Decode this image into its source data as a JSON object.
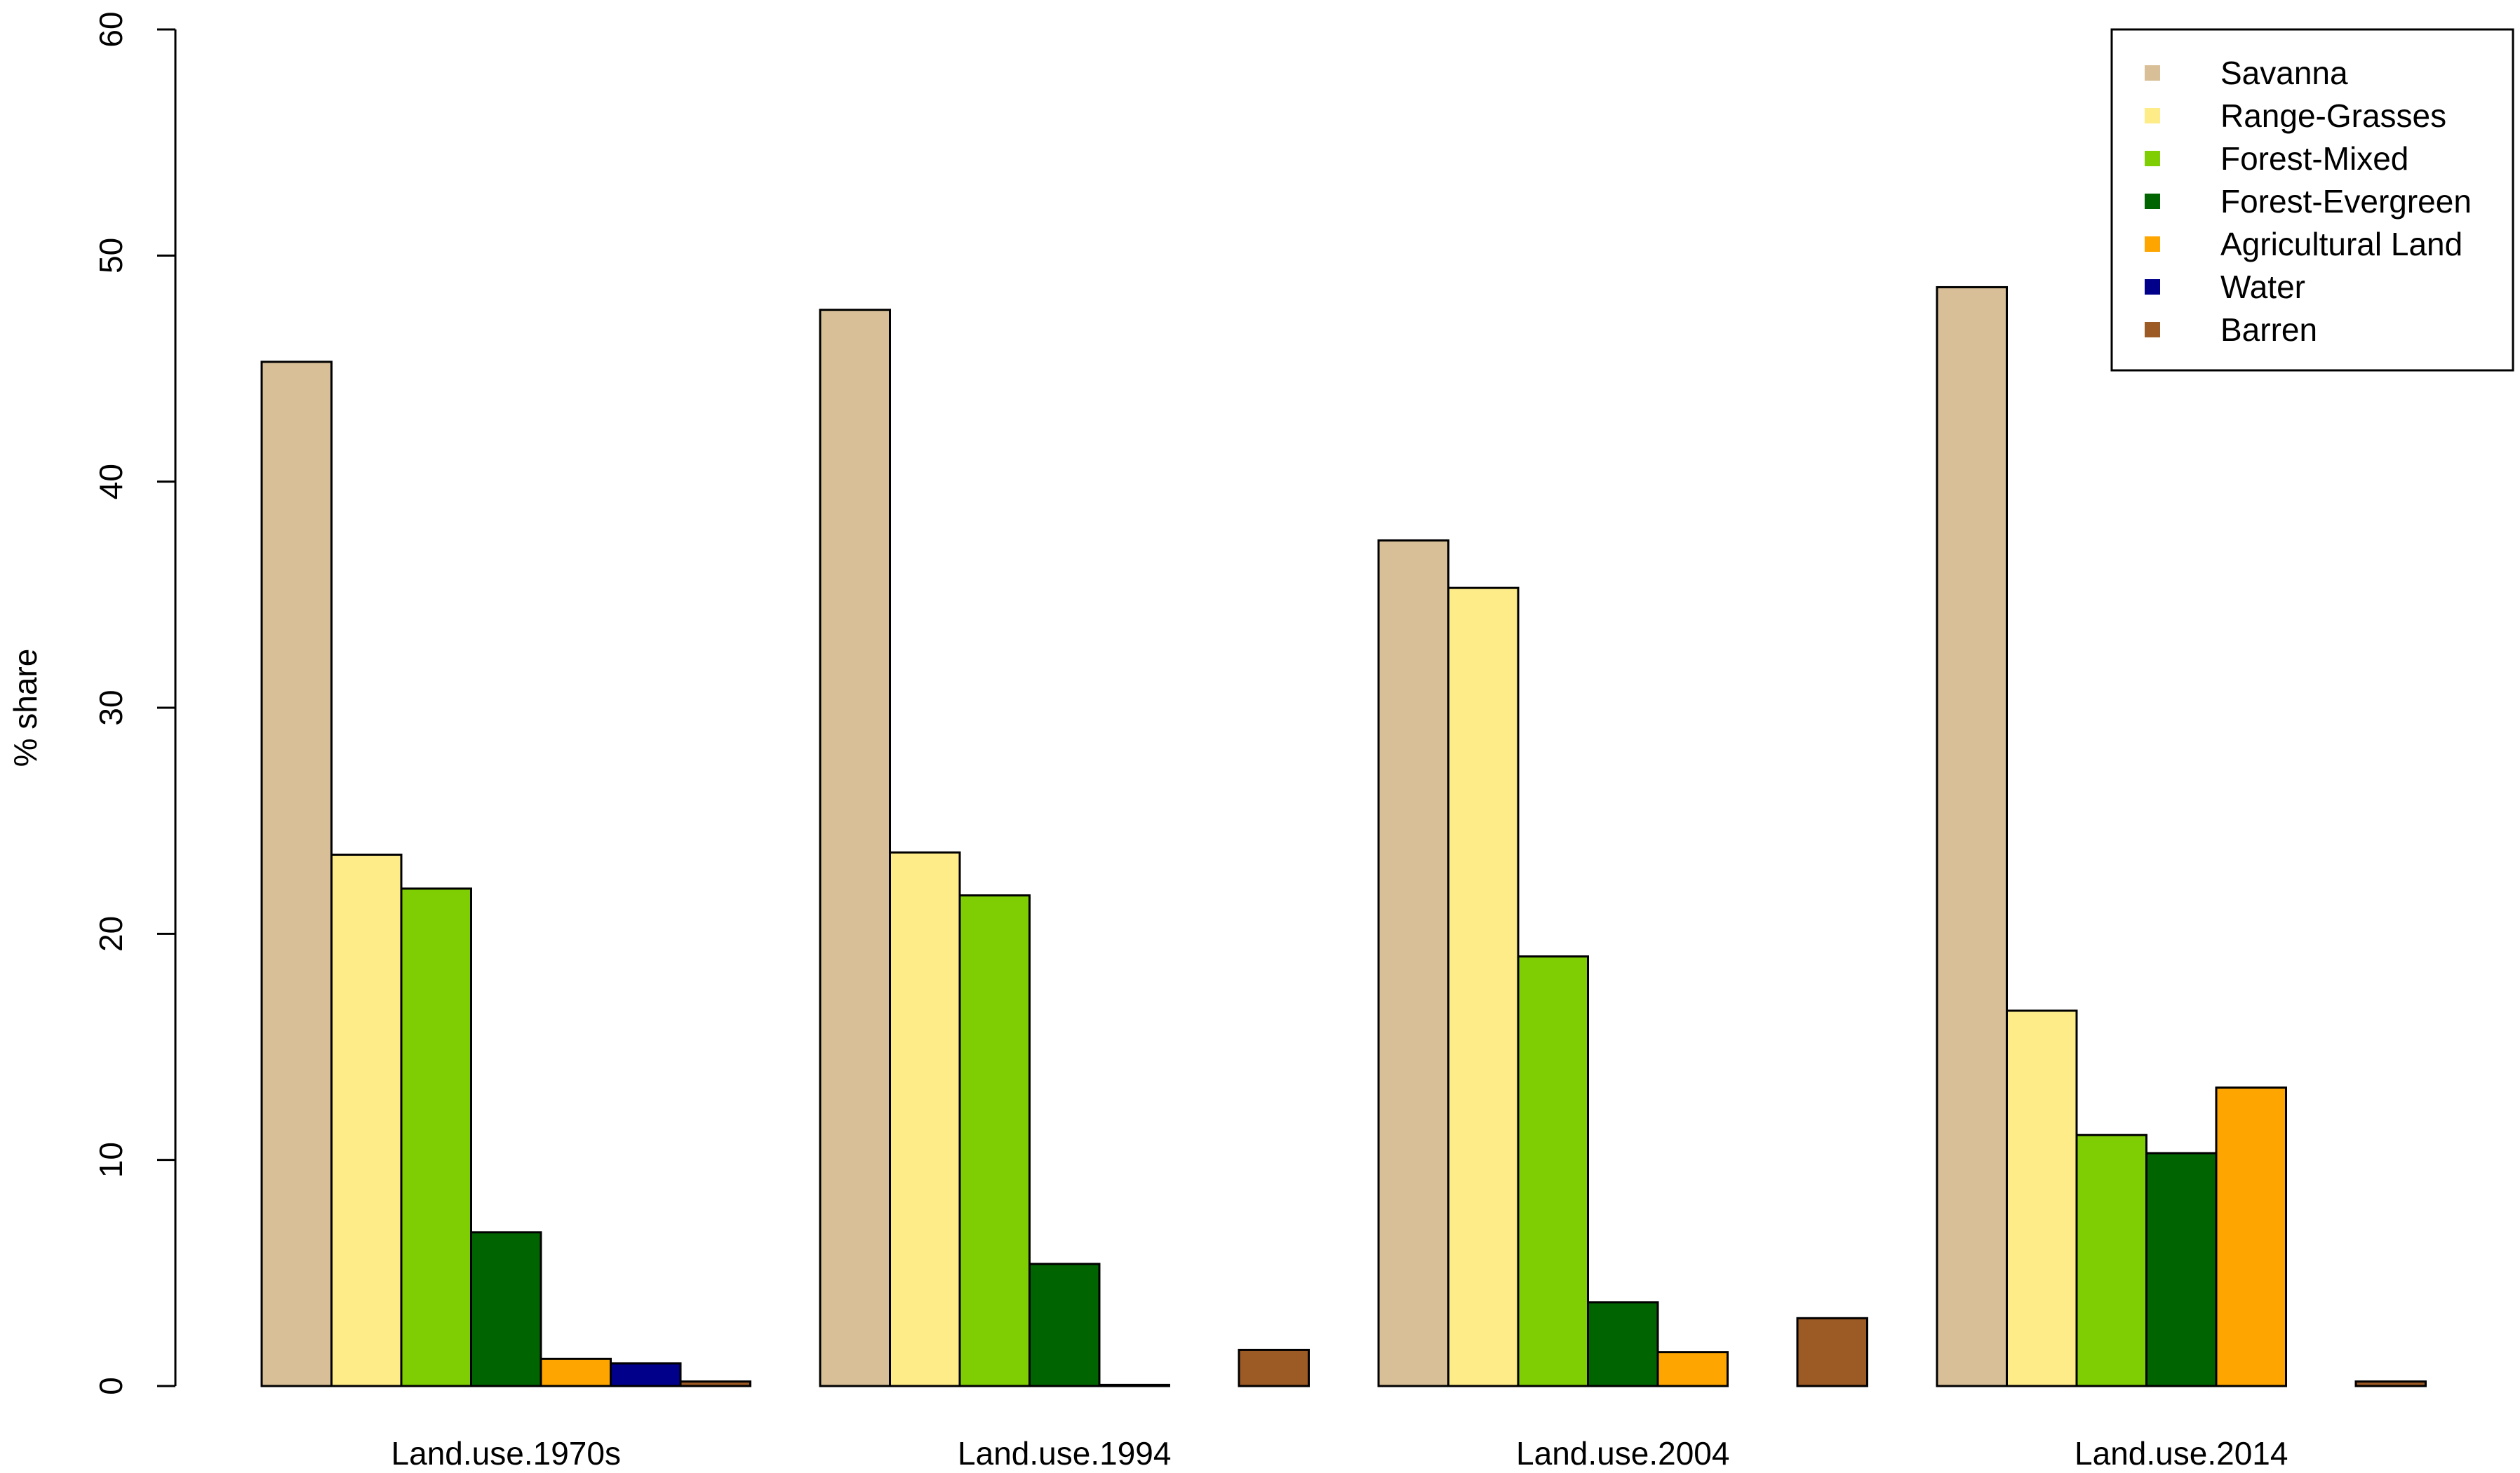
{
  "chart_data": {
    "type": "bar",
    "title": "",
    "xlabel": "",
    "ylabel": "% share",
    "ylim": [
      0,
      60
    ],
    "yticks": [
      0,
      10,
      20,
      30,
      40,
      50,
      60
    ],
    "grid": false,
    "legend_position": "top-right",
    "categories": [
      "Land.use.1970s",
      "Land.use.1994",
      "Land.use.2004",
      "Land.use.2014"
    ],
    "series": [
      {
        "name": "Savanna",
        "color": "#D8BF98",
        "values": [
          45.3,
          47.6,
          37.4,
          48.6
        ]
      },
      {
        "name": "Range-Grasses",
        "color": "#FDEC88",
        "values": [
          23.5,
          23.6,
          35.3,
          16.6
        ]
      },
      {
        "name": "Forest-Mixed",
        "color": "#7FCD03",
        "values": [
          22.0,
          21.7,
          19.0,
          11.1
        ]
      },
      {
        "name": "Forest-Evergreen",
        "color": "#006400",
        "values": [
          6.8,
          5.4,
          3.7,
          10.3
        ]
      },
      {
        "name": "Agricultural Land",
        "color": "#FFA500",
        "values": [
          1.2,
          0.05,
          1.5,
          13.2
        ]
      },
      {
        "name": "Water",
        "color": "#00008B",
        "values": [
          1.0,
          0.0,
          0.0,
          0.0
        ]
      },
      {
        "name": "Barren",
        "color": "#9C5A25",
        "values": [
          0.2,
          1.6,
          3.0,
          0.2
        ]
      }
    ]
  }
}
